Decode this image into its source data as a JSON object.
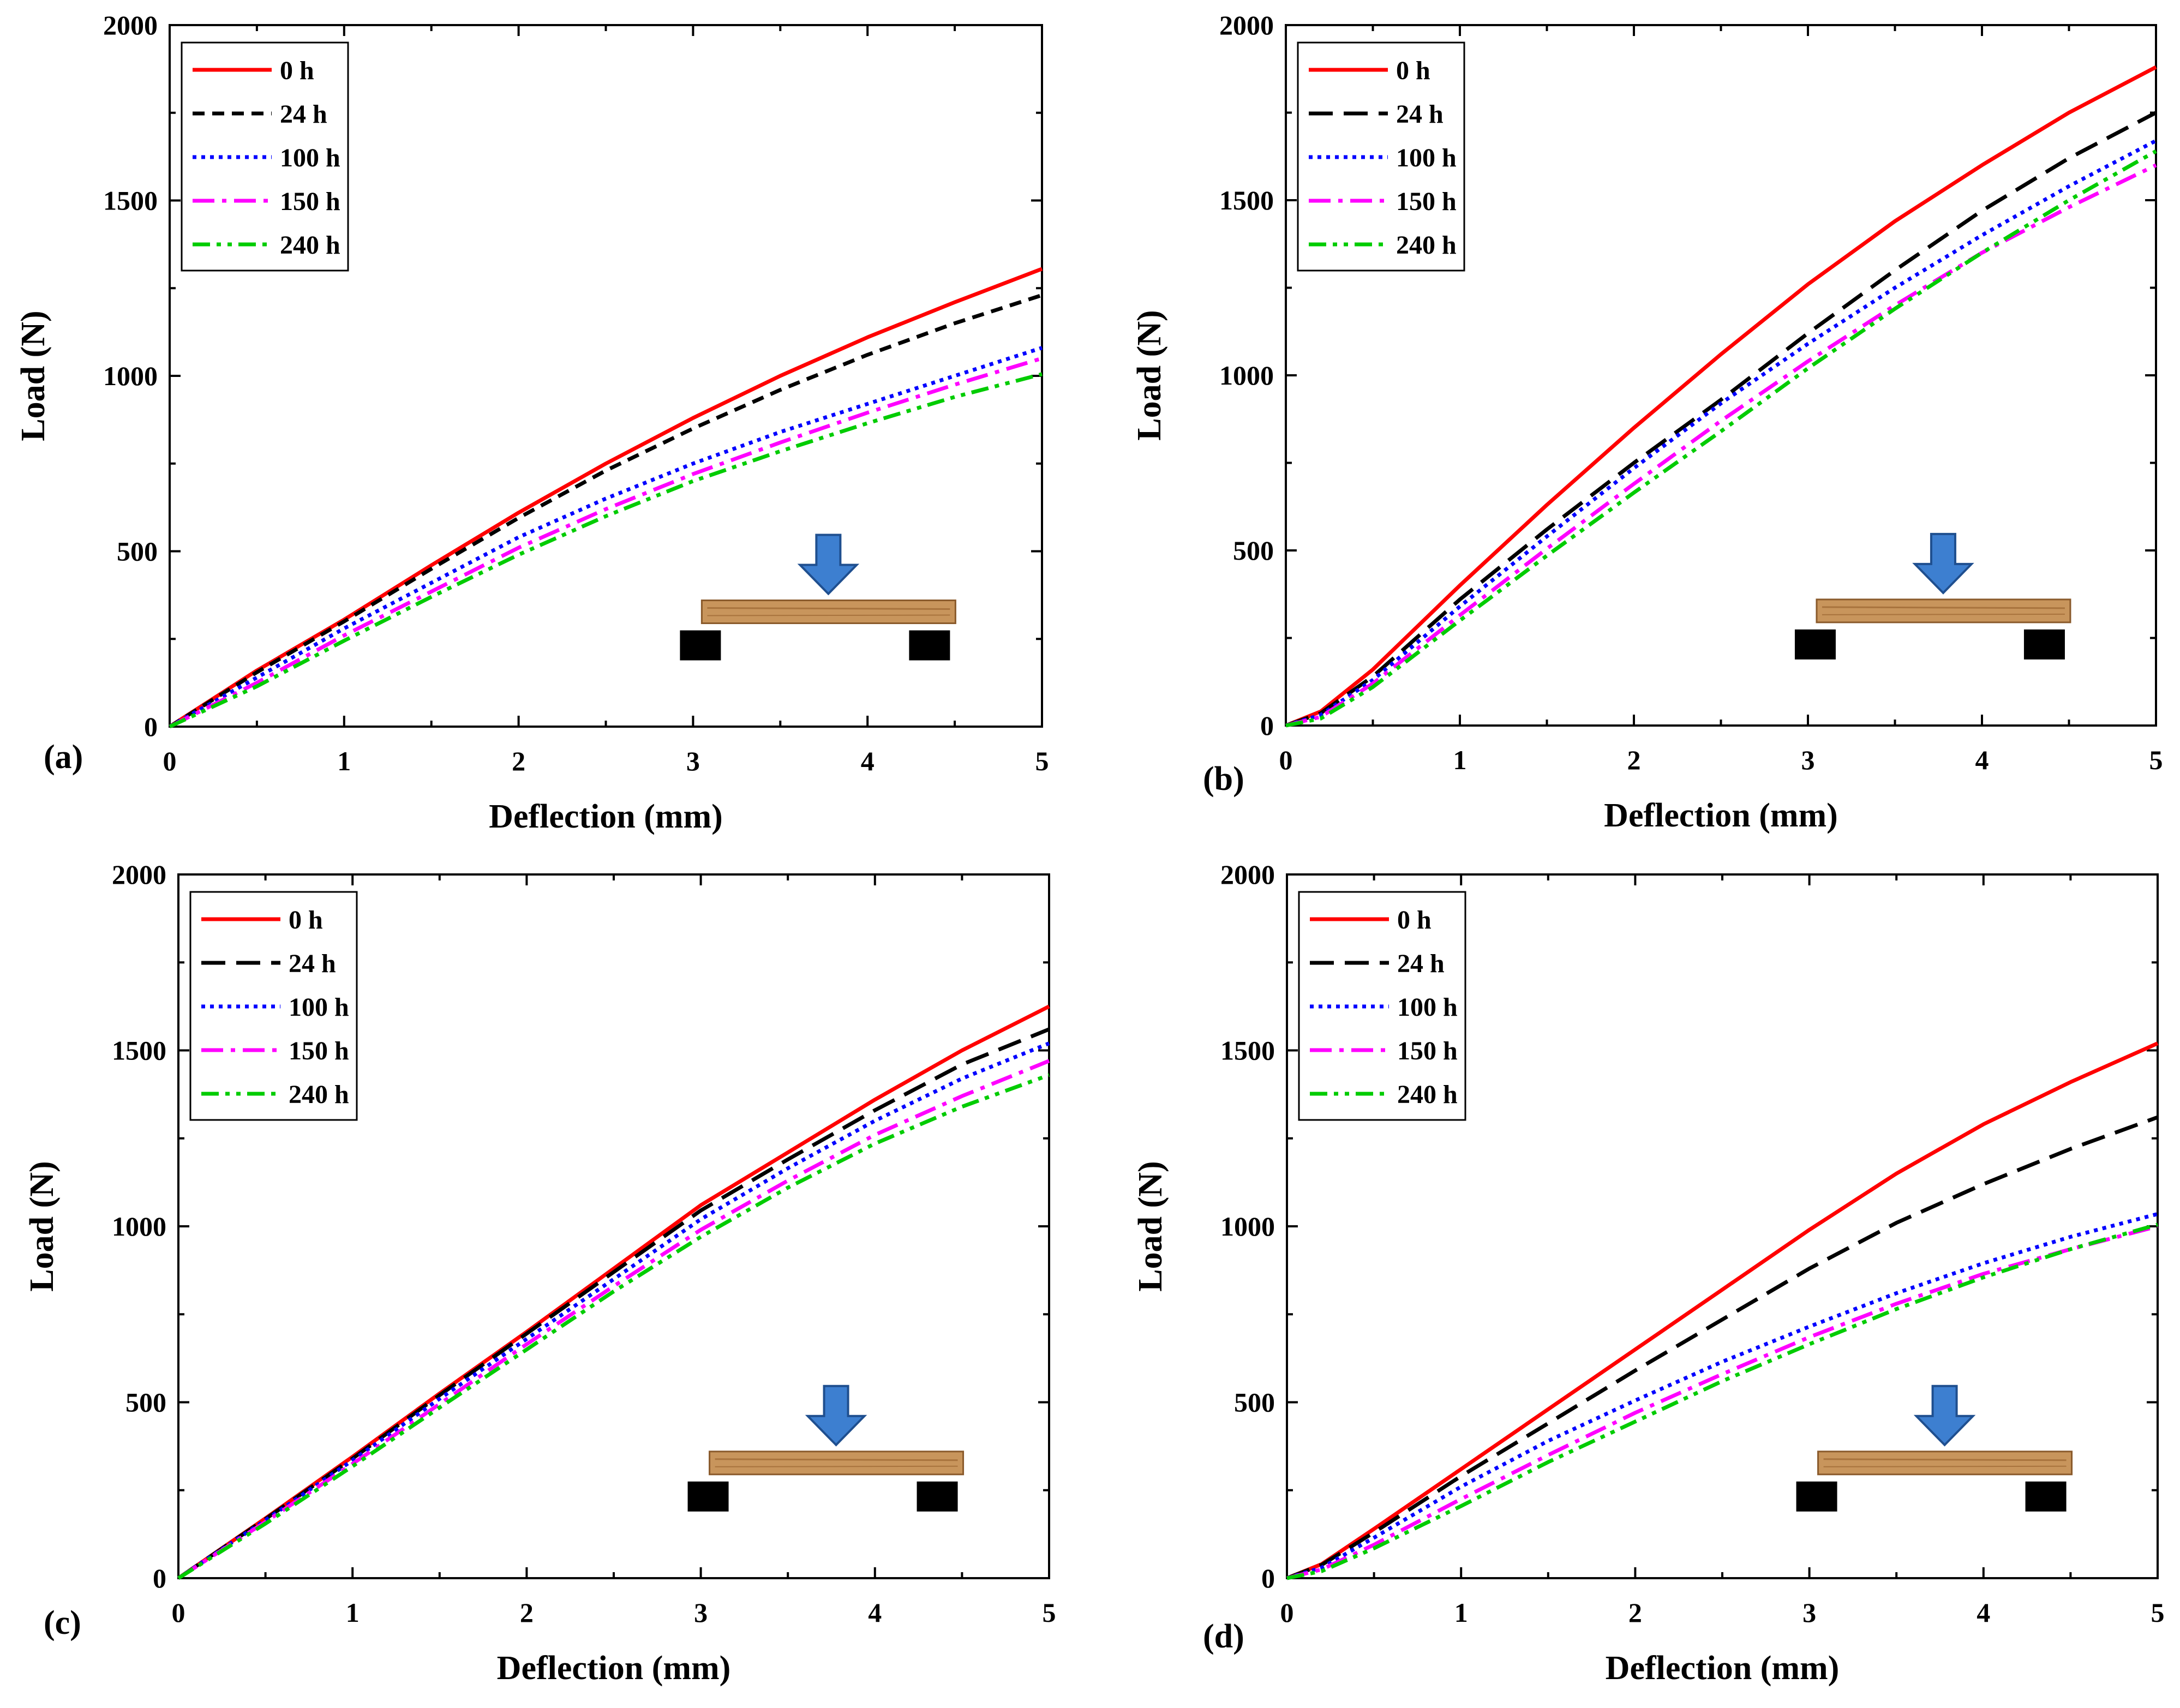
{
  "chart_data": [
    {
      "type": "line",
      "panel_label": "(a)",
      "xlabel": "Deflection (mm)",
      "ylabel": "Load (N)",
      "xlim": [
        0,
        5
      ],
      "ylim": [
        0,
        2000
      ],
      "x_ticks": [
        "0",
        "1",
        "2",
        "3",
        "4",
        "5"
      ],
      "y_ticks": [
        "0",
        "500",
        "1000",
        "1500",
        "2000"
      ],
      "legend_position": "top-left",
      "x": [
        0,
        0.5,
        1,
        1.5,
        2,
        2.5,
        3,
        3.5,
        4,
        4.5,
        5
      ],
      "series": [
        {
          "name": "0 h",
          "color": "#ff0000",
          "style": "solid",
          "values": [
            0,
            160,
            305,
            460,
            610,
            750,
            880,
            1000,
            1110,
            1210,
            1305
          ]
        },
        {
          "name": "24 h",
          "color": "#000000",
          "style": "short-dash",
          "values": [
            0,
            155,
            300,
            450,
            595,
            730,
            850,
            960,
            1060,
            1150,
            1230
          ]
        },
        {
          "name": "100 h",
          "color": "#0000ff",
          "style": "dot",
          "values": [
            0,
            140,
            280,
            410,
            540,
            650,
            750,
            840,
            920,
            1000,
            1080
          ]
        },
        {
          "name": "150 h",
          "color": "#ff00ff",
          "style": "dash-dot",
          "values": [
            0,
            125,
            260,
            385,
            510,
            620,
            720,
            810,
            895,
            975,
            1050
          ]
        },
        {
          "name": "240 h",
          "color": "#00cc00",
          "style": "dash-dot-dot",
          "values": [
            0,
            115,
            245,
            370,
            490,
            600,
            700,
            785,
            865,
            940,
            1005
          ]
        }
      ]
    },
    {
      "type": "line",
      "panel_label": "(b)",
      "xlabel": "Deflection (mm)",
      "ylabel": "Load (N)",
      "xlim": [
        0,
        5
      ],
      "ylim": [
        0,
        2000
      ],
      "x_ticks": [
        "0",
        "1",
        "2",
        "3",
        "4",
        "5"
      ],
      "y_ticks": [
        "0",
        "500",
        "1000",
        "1500",
        "2000"
      ],
      "legend_position": "top-left",
      "x": [
        0,
        0.2,
        0.5,
        1,
        1.5,
        2,
        2.5,
        3,
        3.5,
        4,
        4.5,
        5
      ],
      "series": [
        {
          "name": "0 h",
          "color": "#ff0000",
          "style": "solid",
          "values": [
            0,
            40,
            160,
            400,
            630,
            850,
            1060,
            1260,
            1440,
            1600,
            1750,
            1880
          ]
        },
        {
          "name": "24 h",
          "color": "#000000",
          "style": "long-dash",
          "values": [
            0,
            35,
            140,
            360,
            560,
            750,
            930,
            1120,
            1300,
            1470,
            1620,
            1750
          ]
        },
        {
          "name": "100 h",
          "color": "#0000ff",
          "style": "dot",
          "values": [
            0,
            30,
            130,
            340,
            540,
            735,
            920,
            1090,
            1250,
            1400,
            1540,
            1670
          ]
        },
        {
          "name": "150 h",
          "color": "#ff00ff",
          "style": "dash-dot",
          "values": [
            0,
            25,
            120,
            315,
            505,
            690,
            870,
            1040,
            1200,
            1350,
            1480,
            1600
          ]
        },
        {
          "name": "240 h",
          "color": "#00cc00",
          "style": "dash-dot-dot",
          "values": [
            0,
            20,
            110,
            300,
            485,
            665,
            840,
            1020,
            1190,
            1350,
            1500,
            1640
          ]
        }
      ]
    },
    {
      "type": "line",
      "panel_label": "(c)",
      "xlabel": "Deflection (mm)",
      "ylabel": "Load (N)",
      "xlim": [
        0,
        5
      ],
      "ylim": [
        0,
        2000
      ],
      "x_ticks": [
        "0",
        "1",
        "2",
        "3",
        "4",
        "5"
      ],
      "y_ticks": [
        "0",
        "500",
        "1000",
        "1500",
        "2000"
      ],
      "legend_position": "top-left",
      "x": [
        0,
        0.5,
        1,
        1.5,
        2,
        2.5,
        3,
        3.5,
        4,
        4.5,
        5
      ],
      "series": [
        {
          "name": "0 h",
          "color": "#ff0000",
          "style": "solid",
          "values": [
            0,
            170,
            345,
            525,
            700,
            880,
            1060,
            1210,
            1360,
            1500,
            1625
          ]
        },
        {
          "name": "24 h",
          "color": "#000000",
          "style": "long-dash",
          "values": [
            0,
            168,
            340,
            520,
            695,
            870,
            1045,
            1190,
            1330,
            1460,
            1560
          ]
        },
        {
          "name": "100 h",
          "color": "#0000ff",
          "style": "dot",
          "values": [
            0,
            165,
            335,
            510,
            680,
            850,
            1020,
            1165,
            1300,
            1420,
            1520
          ]
        },
        {
          "name": "150 h",
          "color": "#ff00ff",
          "style": "dash-dot",
          "values": [
            0,
            160,
            325,
            495,
            665,
            830,
            990,
            1130,
            1260,
            1370,
            1470
          ]
        },
        {
          "name": "240 h",
          "color": "#00cc00",
          "style": "dash-dot-dot",
          "values": [
            0,
            155,
            318,
            485,
            650,
            815,
            970,
            1110,
            1235,
            1340,
            1430
          ]
        }
      ]
    },
    {
      "type": "line",
      "panel_label": "(d)",
      "xlabel": "Deflection (mm)",
      "ylabel": "Load (N)",
      "xlim": [
        0,
        5
      ],
      "ylim": [
        0,
        2000
      ],
      "x_ticks": [
        "0",
        "1",
        "2",
        "3",
        "4",
        "5"
      ],
      "y_ticks": [
        "0",
        "500",
        "1000",
        "1500",
        "2000"
      ],
      "legend_position": "top-left",
      "x": [
        0,
        0.2,
        0.5,
        1,
        1.5,
        2,
        2.5,
        3,
        3.5,
        4,
        4.5,
        5
      ],
      "series": [
        {
          "name": "0 h",
          "color": "#ff0000",
          "style": "solid",
          "values": [
            0,
            40,
            140,
            310,
            480,
            650,
            820,
            990,
            1150,
            1290,
            1410,
            1520
          ]
        },
        {
          "name": "24 h",
          "color": "#000000",
          "style": "long-dash",
          "values": [
            0,
            38,
            130,
            290,
            440,
            590,
            735,
            880,
            1010,
            1120,
            1220,
            1310
          ]
        },
        {
          "name": "100 h",
          "color": "#0000ff",
          "style": "dot",
          "values": [
            0,
            30,
            115,
            260,
            390,
            505,
            615,
            715,
            810,
            895,
            970,
            1035
          ]
        },
        {
          "name": "150 h",
          "color": "#ff00ff",
          "style": "dash-dot",
          "values": [
            0,
            25,
            95,
            225,
            350,
            470,
            580,
            685,
            780,
            865,
            935,
            1000
          ]
        },
        {
          "name": "240 h",
          "color": "#00cc00",
          "style": "dash-dot-dot",
          "values": [
            0,
            20,
            85,
            205,
            330,
            445,
            560,
            665,
            765,
            855,
            935,
            1005
          ]
        }
      ]
    }
  ]
}
